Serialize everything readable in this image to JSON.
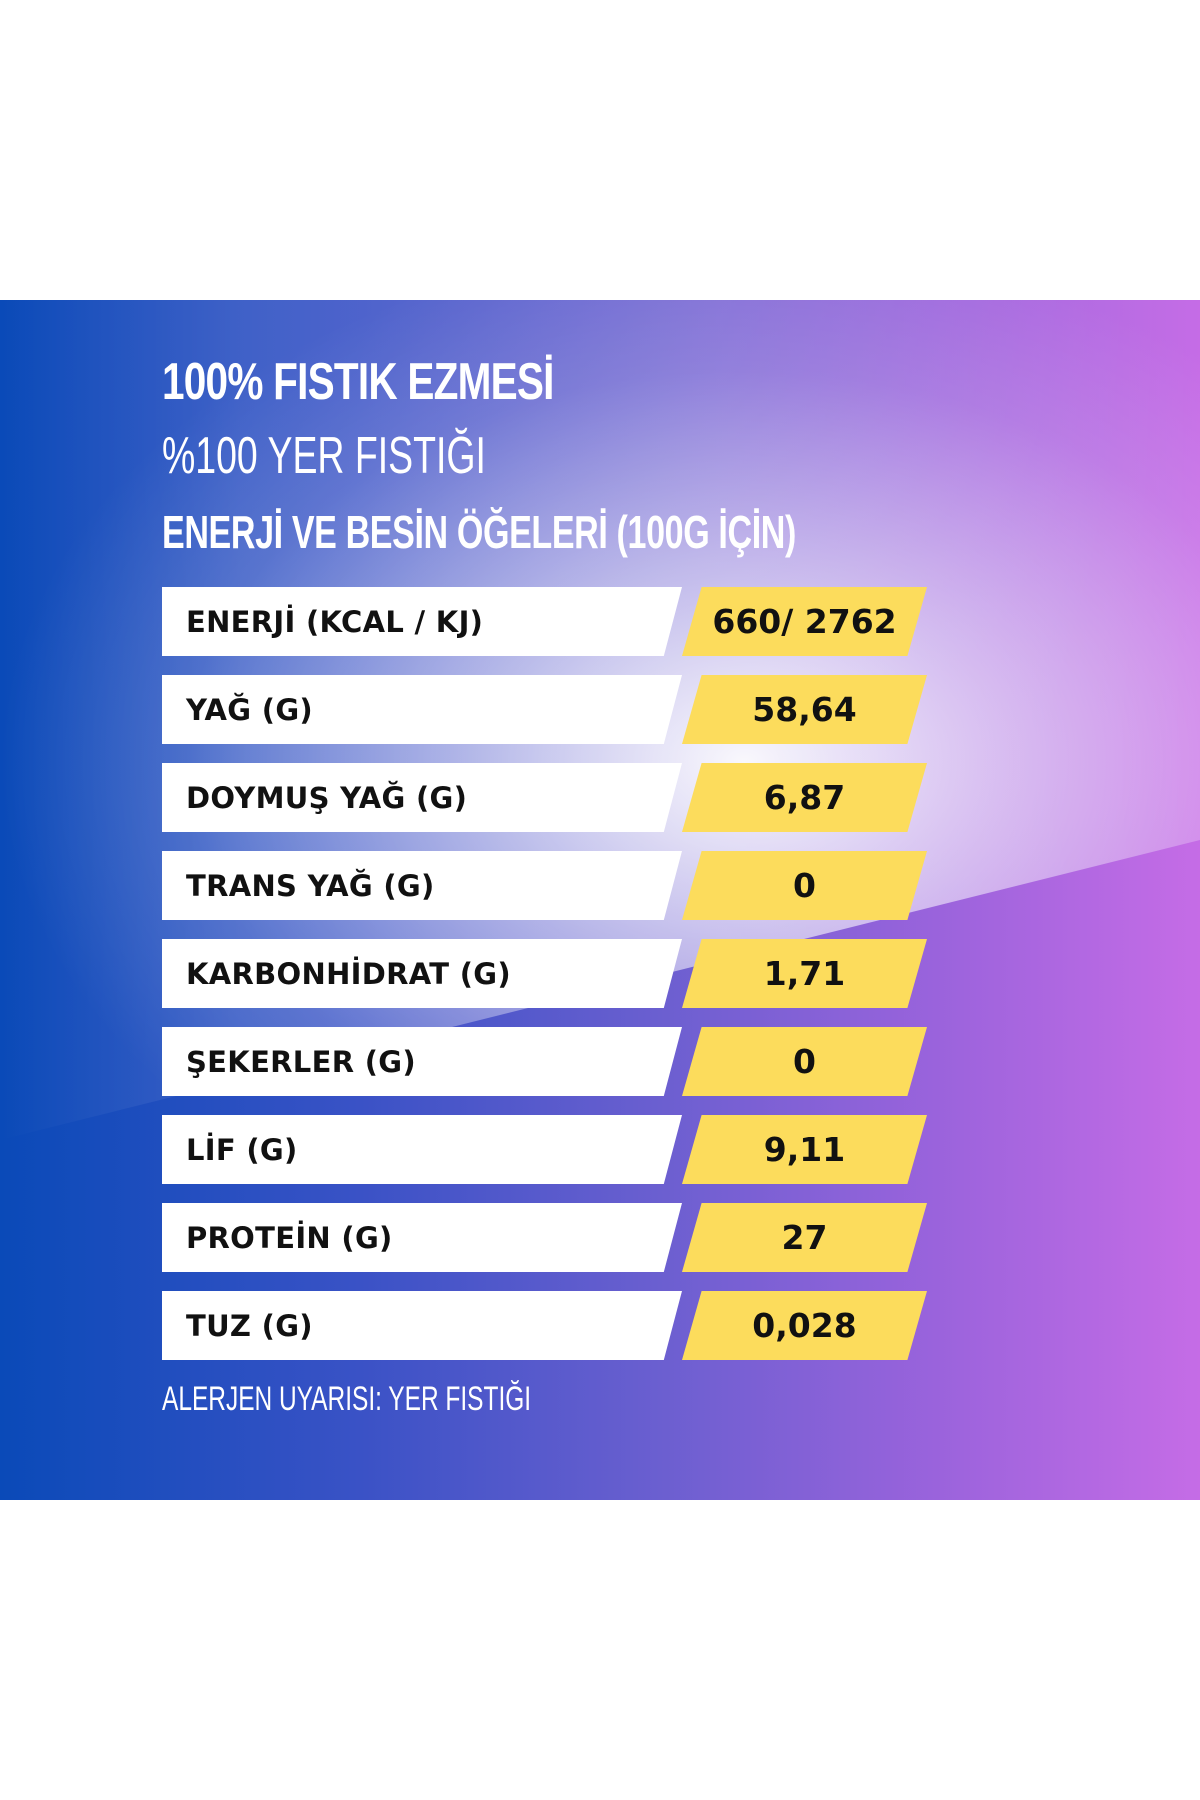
{
  "header": {
    "title": "100% FISTIK EZMESİ",
    "subtitle": "%100 YER FISTIĞI",
    "section_heading": "ENERJİ VE BESİN ÖĞELERİ (100G İÇİN)"
  },
  "nutrition": {
    "rows": [
      {
        "label": "ENERJİ (KCAL / KJ)",
        "value": "660/ 2762"
      },
      {
        "label": "YAĞ (G)",
        "value": "58,64"
      },
      {
        "label": "DOYMUŞ YAĞ (G)",
        "value": "6,87"
      },
      {
        "label": "TRANS YAĞ (G)",
        "value": "0"
      },
      {
        "label": "KARBONHİDRAT (G)",
        "value": "1,71"
      },
      {
        "label": "ŞEKERLER (G)",
        "value": "0"
      },
      {
        "label": "LİF (G)",
        "value": "9,11"
      },
      {
        "label": "PROTEİN (G)",
        "value": "27"
      },
      {
        "label": "TUZ (G)",
        "value": "0,028"
      }
    ]
  },
  "footer": {
    "allergen_warning": "ALERJEN UYARISI: YER FISTIĞI"
  },
  "colors": {
    "background": "#ffffff",
    "gradient_left": "#0a4ab8",
    "gradient_right": "#c56ce6",
    "value_highlight": "#fcdc5c",
    "label_box": "#ffffff",
    "text_dark": "#111111",
    "text_light": "#ffffff"
  }
}
